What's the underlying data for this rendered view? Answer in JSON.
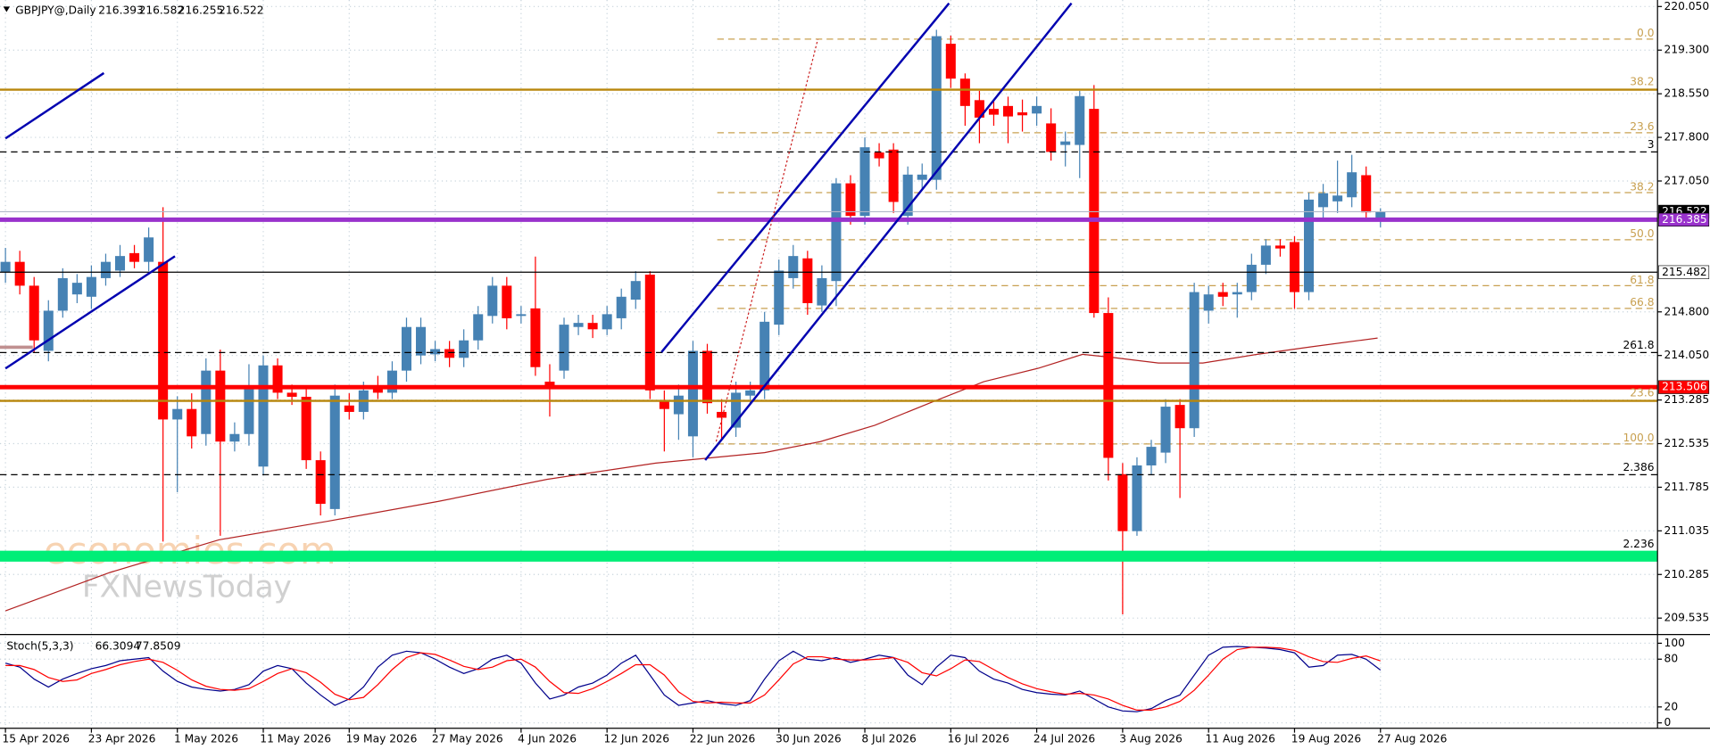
{
  "chart_data": [
    {
      "type": "candlestick",
      "title": "GBPJPY@,Daily",
      "categories": [
        "15 Apr 2026",
        null,
        null,
        null,
        null,
        null,
        "23 Apr 2026",
        null,
        null,
        null,
        null,
        null,
        "1 May 2026",
        null,
        null,
        null,
        null,
        null,
        "11 May 2026",
        null,
        null,
        null,
        null,
        null,
        "19 May 2026",
        null,
        null,
        null,
        null,
        null,
        "27 May 2026",
        null,
        null,
        null,
        null,
        null,
        "4 Jun 2026",
        null,
        null,
        null,
        null,
        null,
        "12 Jun 2026",
        null,
        null,
        null,
        null,
        null,
        "22 Jun 2026",
        null,
        null,
        null,
        null,
        null,
        "30 Jun 2026",
        null,
        null,
        null,
        null,
        null,
        "8 Jul 2026",
        null,
        null,
        null,
        null,
        null,
        "16 Jul 2026",
        null,
        null,
        null,
        null,
        null,
        "24 Jul 2026",
        null,
        null,
        null,
        null,
        null,
        "3 Aug 2026",
        null,
        null,
        null,
        null,
        null,
        "11 Aug 2026",
        null,
        null,
        null,
        null,
        null,
        "19 Aug 2026",
        null,
        null,
        null,
        null,
        null,
        "27 Aug 2026"
      ],
      "open": [
        215.48,
        215.66,
        215.25,
        214.13,
        214.82,
        215.1,
        215.06,
        215.38,
        215.51,
        215.81,
        215.66,
        215.66,
        212.95,
        213.13,
        212.7,
        213.79,
        212.57,
        212.7,
        212.14,
        213.88,
        213.41,
        213.34,
        212.25,
        211.41,
        213.19,
        213.08,
        213.51,
        213.41,
        213.79,
        214.05,
        214.07,
        214.16,
        214.01,
        214.31,
        214.73,
        215.25,
        214.73,
        214.86,
        213.6,
        213.79,
        214.54,
        214.61,
        214.5,
        214.69,
        215.01,
        215.44,
        213.26,
        213.04,
        212.66,
        214.13,
        213.08,
        212.81,
        213.36,
        213.45,
        214.58,
        215.38,
        215.72,
        214.91,
        215.33,
        217.01,
        216.45,
        217.54,
        217.59,
        216.45,
        217.07,
        217.07,
        219.41,
        218.81,
        218.44,
        218.29,
        218.34,
        218.23,
        218.21,
        218.04,
        217.67,
        217.67,
        218.29,
        214.78,
        212.01,
        211.03,
        212.16,
        212.38,
        213.2,
        212.8,
        214.82,
        215.14,
        215.1,
        215.14,
        215.61,
        215.94,
        216.0,
        215.14,
        216.6,
        216.7,
        216.77,
        217.15,
        216.393
      ],
      "high": [
        215.9,
        215.85,
        215.4,
        215.0,
        215.55,
        215.45,
        215.6,
        215.8,
        215.95,
        215.95,
        216.25,
        216.6,
        213.35,
        213.4,
        214.0,
        214.15,
        212.9,
        213.9,
        214.05,
        214.0,
        213.55,
        213.5,
        212.4,
        213.55,
        213.4,
        213.6,
        213.7,
        213.95,
        214.7,
        214.7,
        214.3,
        214.3,
        214.5,
        214.9,
        215.4,
        215.4,
        214.9,
        215.75,
        213.9,
        214.7,
        214.75,
        214.75,
        214.9,
        215.2,
        215.5,
        215.5,
        213.45,
        213.55,
        214.3,
        214.25,
        213.3,
        213.6,
        213.6,
        214.8,
        215.7,
        215.95,
        215.85,
        215.6,
        217.1,
        217.15,
        217.8,
        217.7,
        217.7,
        217.3,
        217.35,
        219.65,
        219.55,
        218.9,
        218.6,
        218.45,
        218.5,
        218.45,
        218.5,
        218.3,
        217.9,
        218.6,
        218.7,
        215.05,
        212.2,
        212.3,
        212.6,
        213.3,
        213.3,
        215.3,
        215.25,
        215.3,
        215.3,
        215.8,
        216.05,
        216.05,
        216.1,
        216.85,
        217.0,
        217.4,
        217.5,
        217.3,
        216.582
      ],
      "low": [
        215.3,
        215.1,
        214.1,
        213.95,
        214.7,
        214.95,
        214.85,
        215.25,
        215.4,
        215.55,
        215.5,
        210.85,
        211.7,
        212.45,
        212.5,
        210.95,
        212.4,
        212.5,
        212.0,
        213.3,
        213.2,
        212.1,
        211.3,
        211.3,
        212.95,
        212.95,
        213.3,
        213.3,
        213.6,
        213.9,
        213.95,
        213.85,
        213.85,
        214.15,
        214.6,
        214.5,
        214.6,
        213.7,
        213.0,
        213.65,
        214.4,
        214.35,
        214.4,
        214.5,
        214.85,
        213.3,
        212.4,
        212.6,
        212.3,
        213.05,
        212.6,
        212.65,
        213.2,
        213.3,
        214.4,
        215.2,
        214.75,
        214.8,
        214.9,
        216.3,
        216.3,
        217.3,
        216.5,
        216.3,
        216.9,
        216.9,
        218.65,
        218.0,
        217.7,
        218.0,
        217.7,
        217.9,
        218.0,
        217.4,
        217.3,
        217.1,
        214.7,
        211.9,
        209.6,
        210.95,
        212.0,
        212.2,
        211.6,
        212.65,
        214.6,
        214.9,
        214.7,
        215.0,
        215.45,
        215.75,
        214.85,
        215.0,
        216.4,
        216.5,
        216.6,
        216.4,
        216.255
      ],
      "close": [
        215.66,
        215.25,
        214.31,
        214.82,
        215.38,
        215.3,
        215.4,
        215.66,
        215.76,
        215.66,
        216.08,
        212.95,
        213.13,
        212.66,
        213.79,
        212.57,
        212.7,
        213.51,
        213.88,
        213.41,
        213.34,
        212.25,
        211.5,
        213.36,
        213.08,
        213.45,
        213.41,
        213.79,
        214.54,
        214.54,
        214.16,
        214.01,
        214.31,
        214.76,
        215.25,
        214.69,
        214.76,
        213.85,
        213.51,
        214.58,
        214.61,
        214.5,
        214.76,
        215.06,
        215.33,
        213.45,
        213.13,
        213.36,
        214.13,
        213.23,
        212.98,
        213.41,
        213.45,
        214.63,
        215.51,
        215.76,
        214.95,
        215.38,
        217.01,
        216.45,
        217.63,
        217.44,
        216.69,
        217.16,
        217.16,
        219.54,
        218.81,
        218.34,
        218.14,
        218.19,
        218.16,
        218.18,
        218.34,
        217.55,
        217.73,
        218.51,
        214.78,
        212.29,
        211.03,
        212.16,
        212.48,
        213.17,
        212.8,
        215.14,
        215.1,
        215.06,
        215.14,
        215.61,
        215.94,
        215.89,
        215.14,
        216.73,
        216.84,
        216.8,
        217.2,
        216.51,
        216.522
      ],
      "up_color": "#4682b4",
      "down_color": "#ff0000",
      "ylim": [
        209.29,
        220.162
      ],
      "yticks": [
        {
          "value": 220.05,
          "label": "220.050"
        },
        {
          "value": 219.3,
          "label": "219.300"
        },
        {
          "value": 218.55,
          "label": "218.550"
        },
        {
          "value": 217.8,
          "label": "217.800"
        },
        {
          "value": 217.05,
          "label": "217.050"
        },
        {
          "value": 214.8,
          "label": "214.800"
        },
        {
          "value": 214.05,
          "label": "214.050"
        },
        213.285,
        212.535,
        211.785,
        {
          "value": 211.035,
          "label": "211.035"
        },
        210.285,
        209.535
      ],
      "grid": true,
      "ma": {
        "color": "#b22222",
        "x": [
          0,
          7.3,
          14.9,
          22.5,
          30.2,
          37.8,
          45.4,
          49.2,
          53,
          56.9,
          60.7,
          64.5,
          68.3,
          72.1,
          75.2,
          77.5,
          80.5,
          83.6,
          87.4,
          91.2,
          95.8
        ],
        "values": [
          209.66,
          210.32,
          210.88,
          211.2,
          211.54,
          211.92,
          212.2,
          212.29,
          212.38,
          212.57,
          212.85,
          213.23,
          213.6,
          213.83,
          214.07,
          214.01,
          213.92,
          213.92,
          214.07,
          214.2,
          214.35
        ]
      },
      "levels": [
        {
          "value": 218.62,
          "color": "#b8860b",
          "width": 2,
          "label": "38.2",
          "label_color": "#c8a050"
        },
        {
          "value": 213.27,
          "color": "#b8860b",
          "width": 2,
          "label": "23.6",
          "label_color": "#c8a050"
        },
        {
          "value": 217.55,
          "color": "#000000",
          "width": 1,
          "dashed": true,
          "label": "3",
          "label_color": "#000000"
        },
        {
          "value": 216.522,
          "color": "#b0b8c8",
          "width": 1,
          "box": "#000000",
          "box_text": "#ffffff"
        },
        {
          "value": 216.385,
          "color": "#9932cc",
          "width": 4,
          "box": "#9932cc",
          "box_text": "#ffffff"
        },
        {
          "value": 215.482,
          "color": "#000000",
          "width": 1,
          "box": "#ffffff",
          "box_text": "#000000"
        },
        {
          "value": 214.1,
          "color": "#000000",
          "width": 1,
          "dashed": true,
          "label": "261.8",
          "label_color": "#000000"
        },
        {
          "value": 213.506,
          "color": "#ff0000",
          "width": 4,
          "box": "#ff0000",
          "box_text": "#ffffff"
        },
        {
          "value": 212.0,
          "color": "#000000",
          "width": 1,
          "dashed": true,
          "label": "2.386",
          "label_color": "#000000"
        },
        {
          "value": 210.6,
          "color": "#00ee77",
          "width": 10,
          "label": "2.236",
          "label_color": "#000000"
        }
      ],
      "fib_color": "#c8a050",
      "fib_levels": [
        {
          "value": 219.49,
          "label": "0.0"
        },
        {
          "value": 217.88,
          "label": "23.6"
        },
        {
          "value": 216.85,
          "label": "38.2"
        },
        {
          "value": 216.04,
          "label": "50.0"
        },
        {
          "value": 215.25,
          "label": "61.8"
        },
        {
          "value": 214.86,
          "label": "66.8"
        },
        {
          "value": 212.53,
          "label": "100.0"
        }
      ],
      "watermark": [
        "economies.com",
        "FXNewsToday"
      ]
    },
    {
      "type": "line",
      "title": "Stoch(5,3,3)",
      "series": [
        {
          "color": "#00008b",
          "values": [
            75,
            70,
            55,
            45,
            55,
            62,
            68,
            72,
            78,
            80,
            82,
            65,
            52,
            45,
            42,
            40,
            42,
            48,
            65,
            72,
            68,
            50,
            35,
            22,
            30,
            45,
            70,
            85,
            90,
            88,
            80,
            70,
            62,
            68,
            80,
            85,
            75,
            50,
            30,
            35,
            45,
            50,
            60,
            75,
            85,
            60,
            35,
            22,
            25,
            28,
            24,
            22,
            28,
            55,
            78,
            90,
            80,
            78,
            82,
            76,
            80,
            85,
            82,
            60,
            48,
            70,
            85,
            82,
            65,
            55,
            50,
            42,
            38,
            36,
            35,
            40,
            30,
            20,
            15,
            14,
            18,
            28,
            35,
            60,
            85,
            95,
            96,
            95,
            94,
            92,
            88,
            70,
            72,
            85,
            86,
            80,
            66.3094
          ]
        },
        {
          "color": "#ff0000",
          "values": [
            72,
            72,
            67,
            57,
            52,
            54,
            62,
            67,
            73,
            77,
            80,
            76,
            66,
            54,
            46,
            42,
            41,
            43,
            52,
            62,
            68,
            63,
            51,
            36,
            29,
            32,
            48,
            67,
            82,
            88,
            86,
            79,
            71,
            67,
            70,
            78,
            80,
            70,
            52,
            38,
            37,
            43,
            52,
            62,
            73,
            73,
            60,
            39,
            27,
            25,
            26,
            25,
            25,
            35,
            54,
            74,
            83,
            83,
            80,
            79,
            79,
            80,
            82,
            76,
            63,
            59,
            68,
            79,
            77,
            67,
            57,
            49,
            43,
            39,
            36,
            37,
            35,
            30,
            22,
            16,
            16,
            20,
            27,
            41,
            60,
            80,
            92,
            95,
            95,
            94,
            91,
            83,
            77,
            76,
            81,
            84,
            77.8509
          ]
        }
      ],
      "ylim": [
        -6.8,
        108.2
      ],
      "yticks": [
        0,
        20,
        80,
        100
      ],
      "grid": true
    }
  ]
}
